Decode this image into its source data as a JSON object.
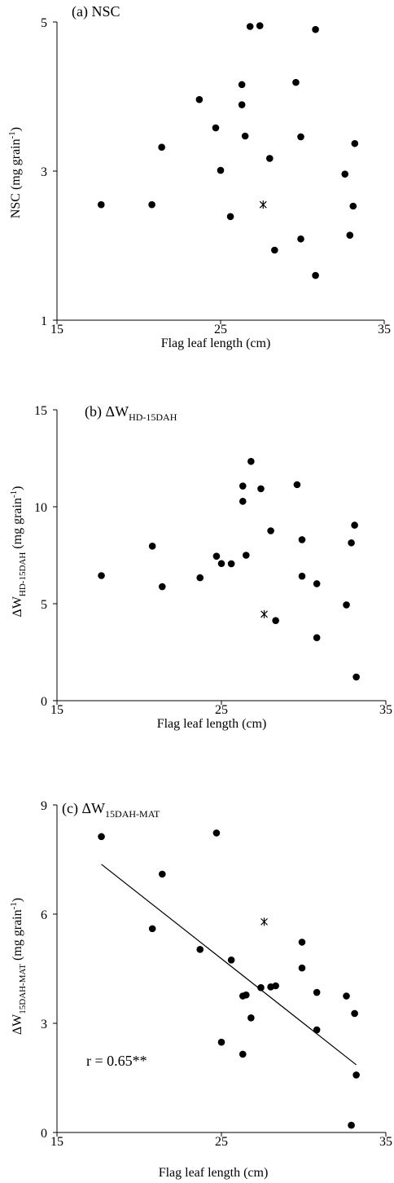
{
  "chart_data": [
    {
      "type": "scatter",
      "title": "(a) NSC",
      "xlabel": "Flag leaf length (cm)",
      "ylabel": "NSC (mg grain⁻¹)",
      "ylabel_parts": {
        "main": "NSC (mg grain",
        "sup": "-1",
        "end": ")"
      },
      "xlim": [
        15,
        35
      ],
      "ylim": [
        1,
        5
      ],
      "xticks": [
        "15",
        "25",
        "35"
      ],
      "yticks": [
        "1",
        "3",
        "5"
      ],
      "xtick_values": [
        15,
        25,
        35
      ],
      "ytick_values": [
        1,
        3,
        5
      ],
      "points": [
        {
          "x": 17.7,
          "y": 2.55
        },
        {
          "x": 20.8,
          "y": 2.55
        },
        {
          "x": 21.4,
          "y": 3.32
        },
        {
          "x": 23.7,
          "y": 3.96
        },
        {
          "x": 24.7,
          "y": 3.58
        },
        {
          "x": 25.0,
          "y": 3.01
        },
        {
          "x": 25.6,
          "y": 2.39
        },
        {
          "x": 26.3,
          "y": 4.16
        },
        {
          "x": 26.3,
          "y": 3.89
        },
        {
          "x": 26.5,
          "y": 3.47
        },
        {
          "x": 26.8,
          "y": 4.94
        },
        {
          "x": 27.4,
          "y": 4.95
        },
        {
          "x": 28.0,
          "y": 3.17
        },
        {
          "x": 28.3,
          "y": 1.94
        },
        {
          "x": 29.6,
          "y": 4.19
        },
        {
          "x": 29.9,
          "y": 3.46
        },
        {
          "x": 29.9,
          "y": 2.09
        },
        {
          "x": 30.8,
          "y": 4.9
        },
        {
          "x": 30.8,
          "y": 1.6
        },
        {
          "x": 32.6,
          "y": 2.96
        },
        {
          "x": 32.9,
          "y": 2.14
        },
        {
          "x": 33.1,
          "y": 2.53
        },
        {
          "x": 33.2,
          "y": 3.37
        }
      ],
      "highlight_points": [
        {
          "x": 27.6,
          "y": 2.55
        }
      ]
    },
    {
      "type": "scatter",
      "title": "(b) ΔW HD-15DAH",
      "title_parts": {
        "main": "(b) ΔW",
        "sub": "HD-15DAH"
      },
      "xlabel": "Flag leaf length (cm)",
      "ylabel": "ΔW HD-15DAH (mg grain⁻¹)",
      "ylabel_parts": {
        "main": "ΔW",
        "sub": "HD-15DAH",
        "rest": " (mg grain",
        "sup": "-1",
        "end": ")"
      },
      "xlim": [
        15,
        35
      ],
      "ylim": [
        0,
        15
      ],
      "xticks": [
        "15",
        "25",
        "35"
      ],
      "yticks": [
        "0",
        "5",
        "10",
        "15"
      ],
      "xtick_values": [
        15,
        25,
        35
      ],
      "ytick_values": [
        0,
        5,
        10,
        15
      ],
      "points": [
        {
          "x": 17.7,
          "y": 6.45
        },
        {
          "x": 20.8,
          "y": 7.97
        },
        {
          "x": 21.4,
          "y": 5.88
        },
        {
          "x": 23.7,
          "y": 6.34
        },
        {
          "x": 24.7,
          "y": 7.45
        },
        {
          "x": 25.0,
          "y": 7.07
        },
        {
          "x": 25.6,
          "y": 7.06
        },
        {
          "x": 26.3,
          "y": 11.07
        },
        {
          "x": 26.3,
          "y": 10.28
        },
        {
          "x": 26.5,
          "y": 7.5
        },
        {
          "x": 26.8,
          "y": 12.34
        },
        {
          "x": 27.4,
          "y": 10.93
        },
        {
          "x": 28.0,
          "y": 8.76
        },
        {
          "x": 28.3,
          "y": 4.13
        },
        {
          "x": 29.6,
          "y": 11.14
        },
        {
          "x": 29.9,
          "y": 8.3
        },
        {
          "x": 29.9,
          "y": 6.42
        },
        {
          "x": 30.8,
          "y": 6.03
        },
        {
          "x": 30.8,
          "y": 3.25
        },
        {
          "x": 32.6,
          "y": 4.94
        },
        {
          "x": 32.9,
          "y": 8.14
        },
        {
          "x": 33.1,
          "y": 9.05
        },
        {
          "x": 33.2,
          "y": 1.22
        }
      ],
      "highlight_points": [
        {
          "x": 27.6,
          "y": 4.46
        }
      ]
    },
    {
      "type": "scatter",
      "title": "(c) ΔW 15DAH-MAT",
      "title_parts": {
        "main": "(c) ΔW",
        "sub": "15DAH-MAT"
      },
      "xlabel": "Flag leaf length (cm)",
      "ylabel": "ΔW 15DAH-MAT (mg grain⁻¹)",
      "ylabel_parts": {
        "main": "ΔW",
        "sub": "15DAH-MAT",
        "rest": " (mg grain",
        "sup": "-1",
        "end": ")"
      },
      "xlim": [
        15,
        35
      ],
      "ylim": [
        0,
        9
      ],
      "xticks": [
        "15",
        "25",
        "35"
      ],
      "yticks": [
        "0",
        "3",
        "6",
        "9"
      ],
      "xtick_values": [
        15,
        25,
        35
      ],
      "ytick_values": [
        0,
        3,
        6,
        9
      ],
      "points": [
        {
          "x": 17.7,
          "y": 8.13
        },
        {
          "x": 20.8,
          "y": 5.6
        },
        {
          "x": 21.4,
          "y": 7.1
        },
        {
          "x": 23.7,
          "y": 5.03
        },
        {
          "x": 24.7,
          "y": 8.23
        },
        {
          "x": 25.0,
          "y": 2.48
        },
        {
          "x": 25.6,
          "y": 4.74
        },
        {
          "x": 26.3,
          "y": 3.75
        },
        {
          "x": 26.3,
          "y": 2.15
        },
        {
          "x": 26.5,
          "y": 3.78
        },
        {
          "x": 26.8,
          "y": 3.15
        },
        {
          "x": 27.4,
          "y": 3.98
        },
        {
          "x": 28.0,
          "y": 4.0
        },
        {
          "x": 28.3,
          "y": 4.03
        },
        {
          "x": 29.9,
          "y": 5.23
        },
        {
          "x": 29.9,
          "y": 4.52
        },
        {
          "x": 30.8,
          "y": 3.85
        },
        {
          "x": 30.8,
          "y": 2.82
        },
        {
          "x": 32.6,
          "y": 3.75
        },
        {
          "x": 33.1,
          "y": 3.27
        },
        {
          "x": 33.2,
          "y": 1.58
        },
        {
          "x": 32.9,
          "y": 0.2
        }
      ],
      "highlight_points": [
        {
          "x": 27.6,
          "y": 5.79
        }
      ],
      "regression_line": {
        "x": [
          17.7,
          33.2
        ],
        "y": [
          7.37,
          1.86
        ]
      },
      "annotation": "r = 0.65**"
    }
  ]
}
